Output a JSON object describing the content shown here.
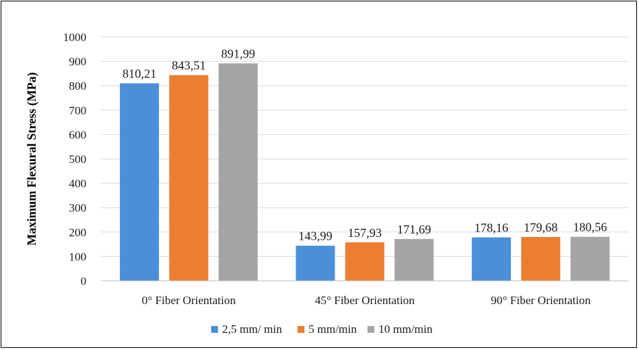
{
  "chart_data": {
    "type": "bar",
    "title": "",
    "xlabel": "",
    "ylabel": "Maximum Flexural Stress (MPa)",
    "ylim": [
      0,
      1000
    ],
    "yticks": [
      "0",
      "100",
      "200",
      "300",
      "400",
      "500",
      "600",
      "700",
      "800",
      "900",
      "1000"
    ],
    "categories": [
      "0° Fiber Orientation",
      "45° Fiber Orientation",
      "90° Fiber Orientation"
    ],
    "series": [
      {
        "name": "2,5 mm/ min",
        "color": "#4a90d9",
        "values": [
          810.21,
          143.99,
          178.16
        ],
        "labels": [
          "810,21",
          "143,99",
          "178,16"
        ]
      },
      {
        "name": "5 mm/min",
        "color": "#ed7d31",
        "values": [
          843.51,
          157.93,
          179.68
        ],
        "labels": [
          "843,51",
          "157,93",
          "179,68"
        ]
      },
      {
        "name": "10 mm/min",
        "color": "#a5a5a5",
        "values": [
          891.99,
          171.69,
          180.56
        ],
        "labels": [
          "891,99",
          "171,69",
          "180,56"
        ]
      }
    ],
    "grid": true,
    "legend_position": "bottom"
  }
}
